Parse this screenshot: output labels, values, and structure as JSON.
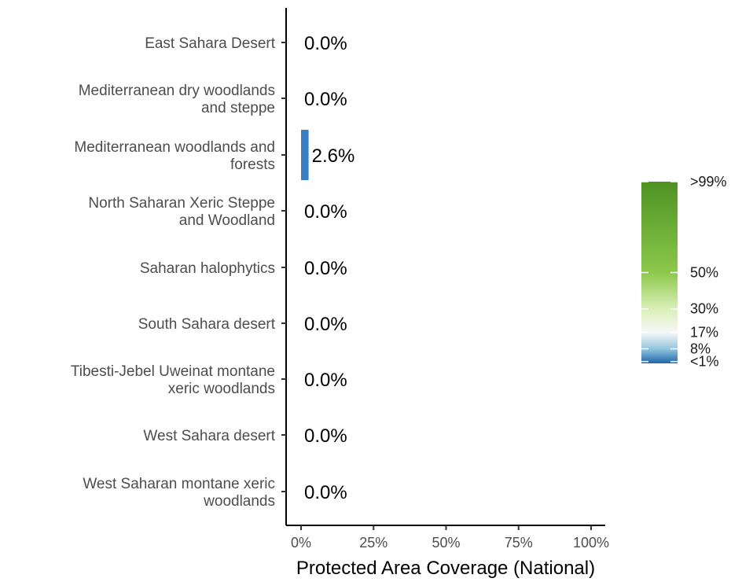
{
  "chart_data": {
    "type": "bar",
    "orientation": "horizontal",
    "xlabel": "Protected Area Coverage (National)",
    "ylabel": "",
    "xlim": [
      0,
      100
    ],
    "x_ticks": [
      {
        "value": 0,
        "label": "0%"
      },
      {
        "value": 25,
        "label": "25%"
      },
      {
        "value": 50,
        "label": "50%"
      },
      {
        "value": 75,
        "label": "75%"
      },
      {
        "value": 100,
        "label": "100%"
      }
    ],
    "categories": [
      [
        "East Sahara Desert"
      ],
      [
        "Mediterranean dry woodlands",
        "and steppe"
      ],
      [
        "Mediterranean woodlands and",
        "forests"
      ],
      [
        "North Saharan Xeric Steppe",
        "and Woodland"
      ],
      [
        "Saharan halophytics"
      ],
      [
        "South Sahara desert"
      ],
      [
        "Tibesti-Jebel Uweinat montane",
        "xeric woodlands"
      ],
      [
        "West Sahara desert"
      ],
      [
        "West Saharan montane xeric",
        "woodlands"
      ]
    ],
    "values": [
      0.0,
      0.0,
      2.6,
      0.0,
      0.0,
      0.0,
      0.0,
      0.0,
      0.0
    ],
    "value_labels": [
      "0.0%",
      "0.0%",
      "2.6%",
      "0.0%",
      "0.0%",
      "0.0%",
      "0.0%",
      "0.0%",
      "0.0%"
    ],
    "grid": false,
    "legend": {
      "type": "colorbar",
      "position": "right",
      "stops": [
        {
          "value": 0,
          "color": "#2166ac"
        },
        {
          "value": 8,
          "color": "#92c5de"
        },
        {
          "value": 17,
          "color": "#f7f7f7"
        },
        {
          "value": 30,
          "color": "#d9f0b8"
        },
        {
          "value": 50,
          "color": "#8cc84b"
        },
        {
          "value": 100,
          "color": "#4d9221"
        }
      ],
      "labels": [
        {
          "value": 100,
          "label": ">99%"
        },
        {
          "value": 50,
          "label": "50%"
        },
        {
          "value": 30,
          "label": "30%"
        },
        {
          "value": 17,
          "label": "17%"
        },
        {
          "value": 8,
          "label": "8%"
        },
        {
          "value": 1,
          "label": "<1%"
        }
      ]
    }
  }
}
